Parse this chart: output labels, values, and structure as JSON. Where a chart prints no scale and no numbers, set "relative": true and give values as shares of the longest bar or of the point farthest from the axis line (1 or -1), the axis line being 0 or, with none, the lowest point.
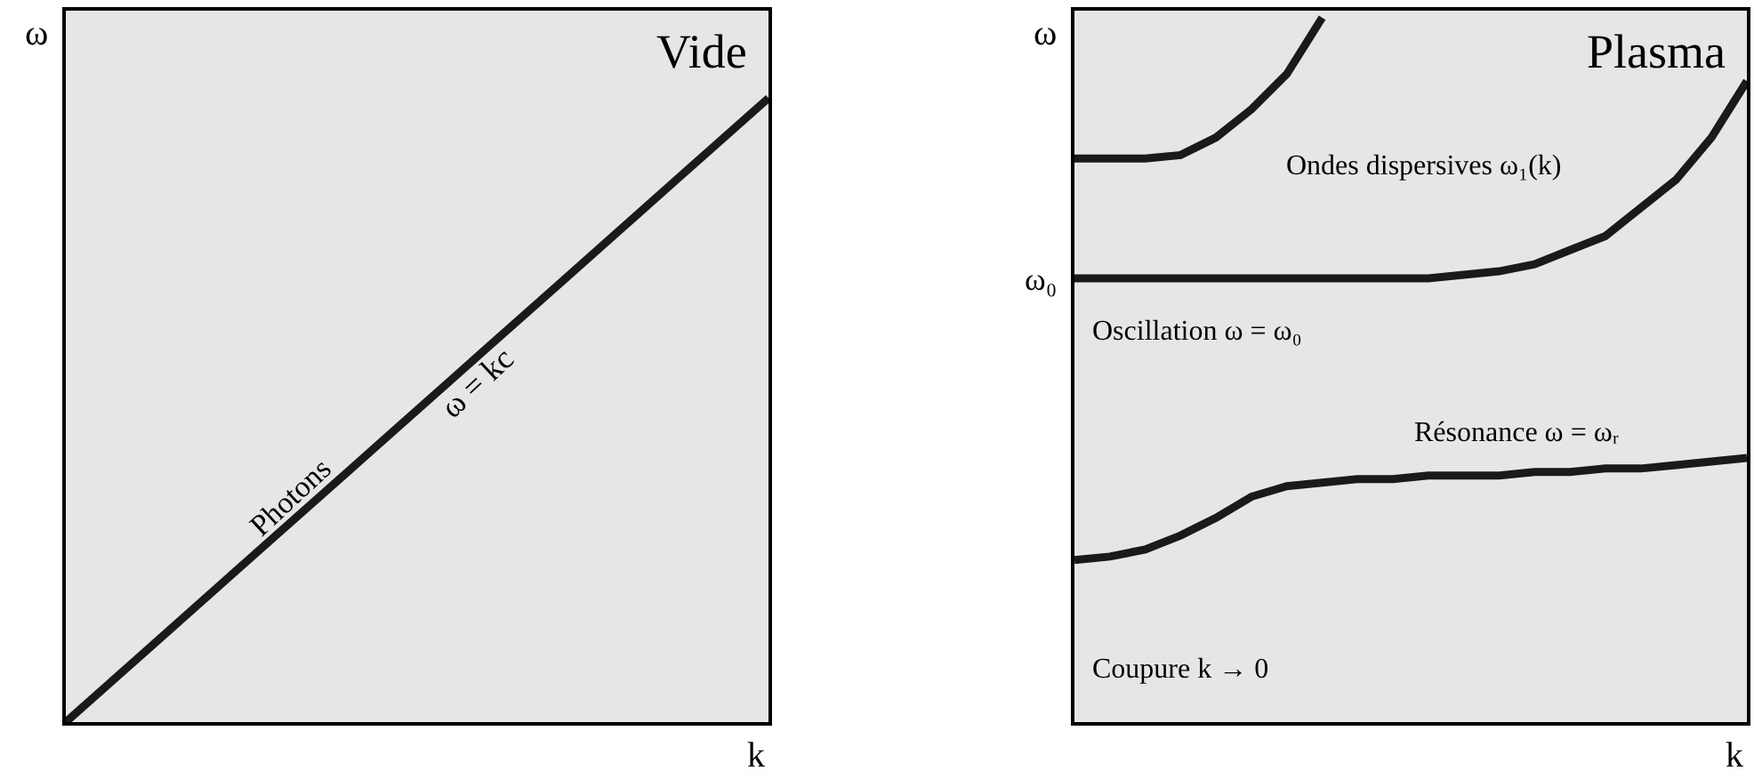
{
  "chart_data": [
    {
      "type": "line",
      "title": "Vide",
      "xlabel": "k",
      "ylabel": "ω",
      "relative": true,
      "categories": [
        null,
        null,
        null,
        null,
        null,
        null,
        null,
        null,
        null,
        null,
        null
      ],
      "series": [
        {
          "name": "Photons",
          "color": "#1a1a1a",
          "values": [
            0,
            0.1,
            0.2,
            0.3,
            0.4,
            0.5,
            0.6,
            0.7,
            0.8,
            0.9,
            1
          ]
        }
      ],
      "annotations": [
        "ω = kc"
      ]
    },
    {
      "type": "line",
      "title": "Plasma",
      "xlabel": "k",
      "ylabel": "ω",
      "relative": true,
      "categories": [
        null,
        null,
        null,
        null,
        null,
        null,
        null,
        null,
        null,
        null,
        null,
        null,
        null,
        null,
        null,
        null,
        null,
        null,
        null,
        null
      ],
      "series": [
        {
          "name": "Ondes dispersives ω₁(k)",
          "color": "#1a1a1a",
          "values": [
            0.8,
            0.8,
            0.8,
            0.805,
            0.83,
            0.87,
            0.92,
            1,
            null,
            null,
            null,
            null,
            null,
            null,
            null,
            null,
            null,
            null,
            null,
            null
          ]
        },
        {
          "name": "Oscillation ω = ω₀",
          "color": "#1a1a1a",
          "values": [
            0.63,
            0.63,
            0.63,
            0.63,
            0.63,
            0.63,
            0.63,
            0.63,
            0.63,
            0.63,
            0.63,
            0.635,
            0.64,
            0.65,
            0.67,
            0.69,
            0.73,
            0.77,
            0.83,
            0.91
          ]
        },
        {
          "name": "Résonance ω = ωᵣ",
          "color": "#1a1a1a",
          "values": [
            0.23,
            0.235,
            0.245,
            0.265,
            0.29,
            0.32,
            0.335,
            0.34,
            0.345,
            0.345,
            0.35,
            0.35,
            0.35,
            0.355,
            0.355,
            0.36,
            0.36,
            0.365,
            0.37,
            0.375
          ]
        }
      ],
      "annotations": [
        "ω₀",
        "Coupure k → 0"
      ]
    }
  ]
}
